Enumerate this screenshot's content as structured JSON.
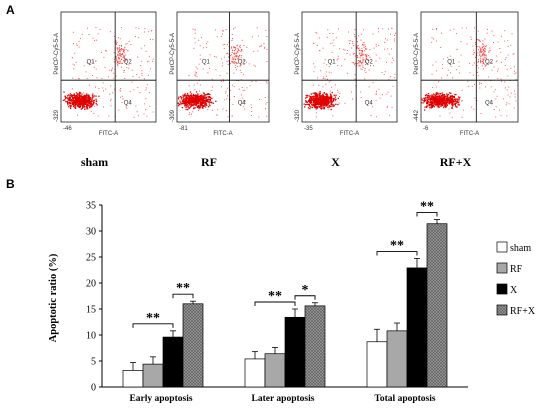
{
  "panels": {
    "a": "A",
    "b": "B"
  },
  "flow": {
    "y_axis_label": "PerCP-Cy5-5-A",
    "x_axis_label": "FITC-A",
    "quadrants": [
      "Q1",
      "Q2",
      "Q4"
    ],
    "plots": [
      {
        "condition": "sham",
        "x_min": "-46",
        "y_min": "-329"
      },
      {
        "condition": "RF",
        "x_min": "-81",
        "y_min": "-309"
      },
      {
        "condition": "X",
        "x_min": "-35",
        "y_min": "-320"
      },
      {
        "condition": "RF+X",
        "x_min": "-6",
        "y_min": "-442"
      }
    ]
  },
  "chart_data": {
    "type": "bar",
    "ylabel": "Apoptotic ratio (%)",
    "xlabel": "",
    "ylim": [
      0,
      35
    ],
    "yticks": [
      "0",
      "5",
      "10",
      "15",
      "20",
      "25",
      "30",
      "35"
    ],
    "categories": [
      "Early apoptosis",
      "Later apoptosis",
      "Total apoptosis"
    ],
    "series": [
      {
        "name": "sham",
        "values": [
          3.2,
          5.4,
          8.7
        ],
        "errors": [
          1.5,
          1.4,
          2.4
        ],
        "color": "#ffffff"
      },
      {
        "name": "RF",
        "values": [
          4.4,
          6.4,
          10.8
        ],
        "errors": [
          1.4,
          1.2,
          1.5
        ],
        "color": "#a8a8a8"
      },
      {
        "name": "X",
        "values": [
          9.6,
          13.4,
          22.9
        ],
        "errors": [
          1.2,
          1.6,
          1.8
        ],
        "color": "#000000"
      },
      {
        "name": "RF+X",
        "values": [
          16.0,
          15.6,
          31.4
        ],
        "errors": [
          0.5,
          0.6,
          0.8
        ],
        "color": "#8c8c8c"
      }
    ],
    "significance": [
      {
        "category": 0,
        "from": 0,
        "to": 2,
        "label": "**"
      },
      {
        "category": 0,
        "from": 2,
        "to": 3,
        "label": "**"
      },
      {
        "category": 1,
        "from": 0,
        "to": 2,
        "label": "**"
      },
      {
        "category": 1,
        "from": 2,
        "to": 3,
        "label": "*"
      },
      {
        "category": 2,
        "from": 0,
        "to": 2,
        "label": "**"
      },
      {
        "category": 2,
        "from": 2,
        "to": 3,
        "label": "**"
      }
    ],
    "legend_position": "right"
  }
}
